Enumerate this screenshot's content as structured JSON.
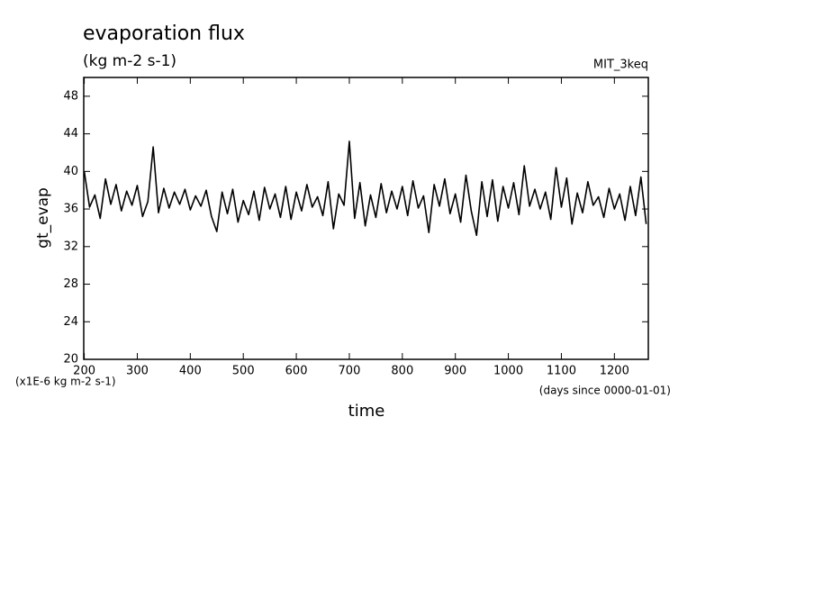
{
  "chart_data": {
    "type": "line",
    "title": "evaporation flux",
    "subtitle": "(kg m-2 s-1)",
    "annotation": "MIT_3keq",
    "y_label": "gt_evap",
    "x_label": "time",
    "y_unit_note": "(x1E-6 kg m-2 s-1)",
    "x_unit_note": "(days since 0000-01-01)",
    "xlim": [
      199,
      1264
    ],
    "ylim": [
      20,
      50
    ],
    "xticks": [
      200,
      300,
      400,
      500,
      600,
      700,
      800,
      900,
      1000,
      1100,
      1200
    ],
    "yticks": [
      20,
      24,
      28,
      32,
      36,
      40,
      44,
      48
    ],
    "grid": false,
    "series": [
      {
        "color": "#000000",
        "x": [
          200,
          210,
          220,
          230,
          240,
          250,
          260,
          270,
          280,
          290,
          300,
          310,
          320,
          330,
          340,
          350,
          360,
          370,
          380,
          390,
          400,
          410,
          420,
          430,
          440,
          450,
          460,
          470,
          480,
          490,
          500,
          510,
          520,
          530,
          540,
          550,
          560,
          570,
          580,
          590,
          600,
          610,
          620,
          630,
          640,
          650,
          660,
          670,
          680,
          690,
          700,
          710,
          720,
          730,
          740,
          750,
          760,
          770,
          780,
          790,
          800,
          810,
          820,
          830,
          840,
          850,
          860,
          870,
          880,
          890,
          900,
          910,
          920,
          930,
          940,
          950,
          960,
          970,
          980,
          990,
          1000,
          1010,
          1020,
          1030,
          1040,
          1050,
          1060,
          1070,
          1080,
          1090,
          1100,
          1110,
          1120,
          1130,
          1140,
          1150,
          1160,
          1170,
          1180,
          1190,
          1200,
          1210,
          1220,
          1230,
          1240,
          1250,
          1260
        ],
        "values": [
          40,
          36.2,
          37.5,
          35,
          39.2,
          36.5,
          38.6,
          35.8,
          37.9,
          36.4,
          38.5,
          35.2,
          36.8,
          42.6,
          35.6,
          38.2,
          36.1,
          37.8,
          36.5,
          38.1,
          35.9,
          37.4,
          36.3,
          38.0,
          35.2,
          33.6,
          37.8,
          35.5,
          38.1,
          34.6,
          36.9,
          35.4,
          37.9,
          34.8,
          38.3,
          36.0,
          37.6,
          35.1,
          38.4,
          34.9,
          37.8,
          35.8,
          38.6,
          36.2,
          37.3,
          35.3,
          38.9,
          33.9,
          37.6,
          36.4,
          43.2,
          35.0,
          38.8,
          34.2,
          37.5,
          35.1,
          38.7,
          35.6,
          37.9,
          36.0,
          38.4,
          35.3,
          39.0,
          36.1,
          37.4,
          33.5,
          38.6,
          36.3,
          39.2,
          35.5,
          37.6,
          34.6,
          39.6,
          35.8,
          33.2,
          38.9,
          35.2,
          39.1,
          34.7,
          38.4,
          36.1,
          38.8,
          35.4,
          40.6,
          36.3,
          38.1,
          36.0,
          37.8,
          34.9,
          40.4,
          36.2,
          39.3,
          34.4,
          37.7,
          35.6,
          38.9,
          36.4,
          37.3,
          35.1,
          38.2,
          36.0,
          37.6,
          34.8,
          38.4,
          35.3,
          39.4,
          34.4
        ]
      }
    ]
  }
}
